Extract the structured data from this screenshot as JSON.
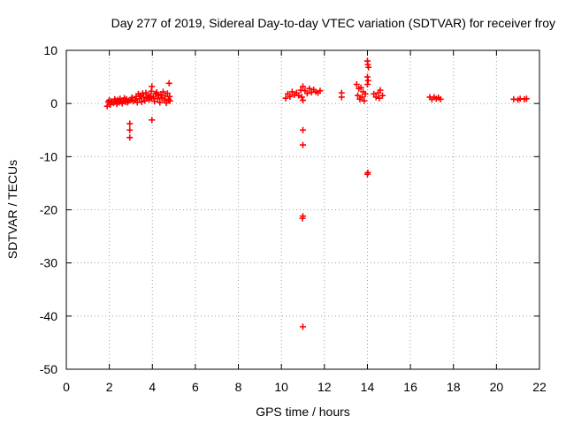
{
  "chart_data": {
    "type": "scatter",
    "title": "Day 277 of 2019, Sidereal Day-to-day VTEC variation (SDTVAR) for receiver froy",
    "xlabel": "GPS time / hours",
    "ylabel": "SDTVAR / TECUs",
    "xlim": [
      0,
      22
    ],
    "ylim": [
      -50,
      10
    ],
    "xticks": [
      0,
      2,
      4,
      6,
      8,
      10,
      12,
      14,
      16,
      18,
      20,
      22
    ],
    "yticks": [
      10,
      0,
      -10,
      -20,
      -30,
      -40,
      -50
    ],
    "grid": true,
    "marker": "+",
    "color": "#ff0000",
    "series": [
      {
        "name": "SDTVAR",
        "points": [
          [
            1.9,
            -0.5
          ],
          [
            1.95,
            0.3
          ],
          [
            2.0,
            0.6
          ],
          [
            2.05,
            -0.2
          ],
          [
            2.1,
            0.4
          ],
          [
            2.2,
            0.1
          ],
          [
            2.25,
            0.8
          ],
          [
            2.3,
            0.5
          ],
          [
            2.35,
            -0.1
          ],
          [
            2.4,
            0.7
          ],
          [
            2.45,
            0.2
          ],
          [
            2.5,
            0.9
          ],
          [
            2.55,
            0.4
          ],
          [
            2.6,
            0.0
          ],
          [
            2.65,
            0.6
          ],
          [
            2.7,
            1.0
          ],
          [
            2.75,
            0.3
          ],
          [
            2.8,
            0.8
          ],
          [
            2.85,
            0.2
          ],
          [
            2.9,
            0.5
          ],
          [
            2.95,
            -3.8
          ],
          [
            2.95,
            -5.0
          ],
          [
            2.95,
            -6.4
          ],
          [
            3.0,
            0.7
          ],
          [
            3.05,
            1.1
          ],
          [
            3.1,
            0.4
          ],
          [
            3.2,
            0.6
          ],
          [
            3.25,
            1.3
          ],
          [
            3.3,
            0.2
          ],
          [
            3.35,
            1.8
          ],
          [
            3.4,
            0.9
          ],
          [
            3.45,
            1.5
          ],
          [
            3.5,
            0.3
          ],
          [
            3.55,
            1.9
          ],
          [
            3.6,
            1.2
          ],
          [
            3.65,
            0.5
          ],
          [
            3.7,
            2.0
          ],
          [
            3.75,
            1.0
          ],
          [
            3.8,
            1.6
          ],
          [
            3.85,
            0.7
          ],
          [
            3.9,
            1.4
          ],
          [
            3.95,
            2.3
          ],
          [
            3.98,
            3.2
          ],
          [
            3.95,
            1.0
          ],
          [
            3.98,
            -3.1
          ],
          [
            4.05,
            1.2
          ],
          [
            4.1,
            0.4
          ],
          [
            4.15,
            1.8
          ],
          [
            4.2,
            2.1
          ],
          [
            4.25,
            0.9
          ],
          [
            4.3,
            1.5
          ],
          [
            4.35,
            0.2
          ],
          [
            4.4,
            1.7
          ],
          [
            4.45,
            1.0
          ],
          [
            4.5,
            2.2
          ],
          [
            4.55,
            0.6
          ],
          [
            4.6,
            1.4
          ],
          [
            4.65,
            0.1
          ],
          [
            4.7,
            1.9
          ],
          [
            4.75,
            0.8
          ],
          [
            4.78,
            3.8
          ],
          [
            4.8,
            1.3
          ],
          [
            4.82,
            0.5
          ],
          [
            10.2,
            1.0
          ],
          [
            10.3,
            1.8
          ],
          [
            10.4,
            1.3
          ],
          [
            10.5,
            2.2
          ],
          [
            10.6,
            1.6
          ],
          [
            10.7,
            2.0
          ],
          [
            10.8,
            1.5
          ],
          [
            10.9,
            2.5
          ],
          [
            10.95,
            1.2
          ],
          [
            11.0,
            3.2
          ],
          [
            11.0,
            0.6
          ],
          [
            11.0,
            -5.0
          ],
          [
            11.0,
            -7.8
          ],
          [
            11.0,
            -21.2
          ],
          [
            10.98,
            -21.6
          ],
          [
            11.0,
            -42.0
          ],
          [
            11.1,
            2.4
          ],
          [
            11.2,
            1.9
          ],
          [
            11.3,
            2.8
          ],
          [
            11.4,
            2.1
          ],
          [
            11.5,
            2.6
          ],
          [
            11.6,
            2.2
          ],
          [
            11.7,
            2.0
          ],
          [
            11.8,
            2.4
          ],
          [
            12.8,
            2.0
          ],
          [
            12.8,
            1.2
          ],
          [
            13.5,
            3.6
          ],
          [
            13.55,
            1.5
          ],
          [
            13.6,
            2.8
          ],
          [
            13.65,
            0.8
          ],
          [
            13.7,
            3.0
          ],
          [
            13.75,
            1.2
          ],
          [
            13.8,
            2.2
          ],
          [
            13.85,
            0.5
          ],
          [
            13.9,
            1.8
          ],
          [
            14.0,
            8.0
          ],
          [
            14.02,
            7.3
          ],
          [
            14.05,
            6.8
          ],
          [
            14.0,
            5.0
          ],
          [
            14.03,
            4.3
          ],
          [
            14.0,
            3.6
          ],
          [
            14.02,
            -13.0
          ],
          [
            14.0,
            -13.3
          ],
          [
            14.3,
            1.8
          ],
          [
            14.4,
            1.2
          ],
          [
            14.5,
            2.0
          ],
          [
            14.55,
            1.0
          ],
          [
            14.6,
            2.5
          ],
          [
            14.7,
            1.5
          ],
          [
            16.9,
            1.2
          ],
          [
            17.0,
            0.8
          ],
          [
            17.1,
            1.2
          ],
          [
            17.2,
            0.9
          ],
          [
            17.3,
            1.1
          ],
          [
            17.4,
            0.8
          ],
          [
            20.8,
            0.8
          ],
          [
            21.0,
            0.7
          ],
          [
            21.1,
            0.9
          ],
          [
            21.3,
            0.8
          ],
          [
            21.4,
            0.9
          ]
        ]
      }
    ]
  }
}
